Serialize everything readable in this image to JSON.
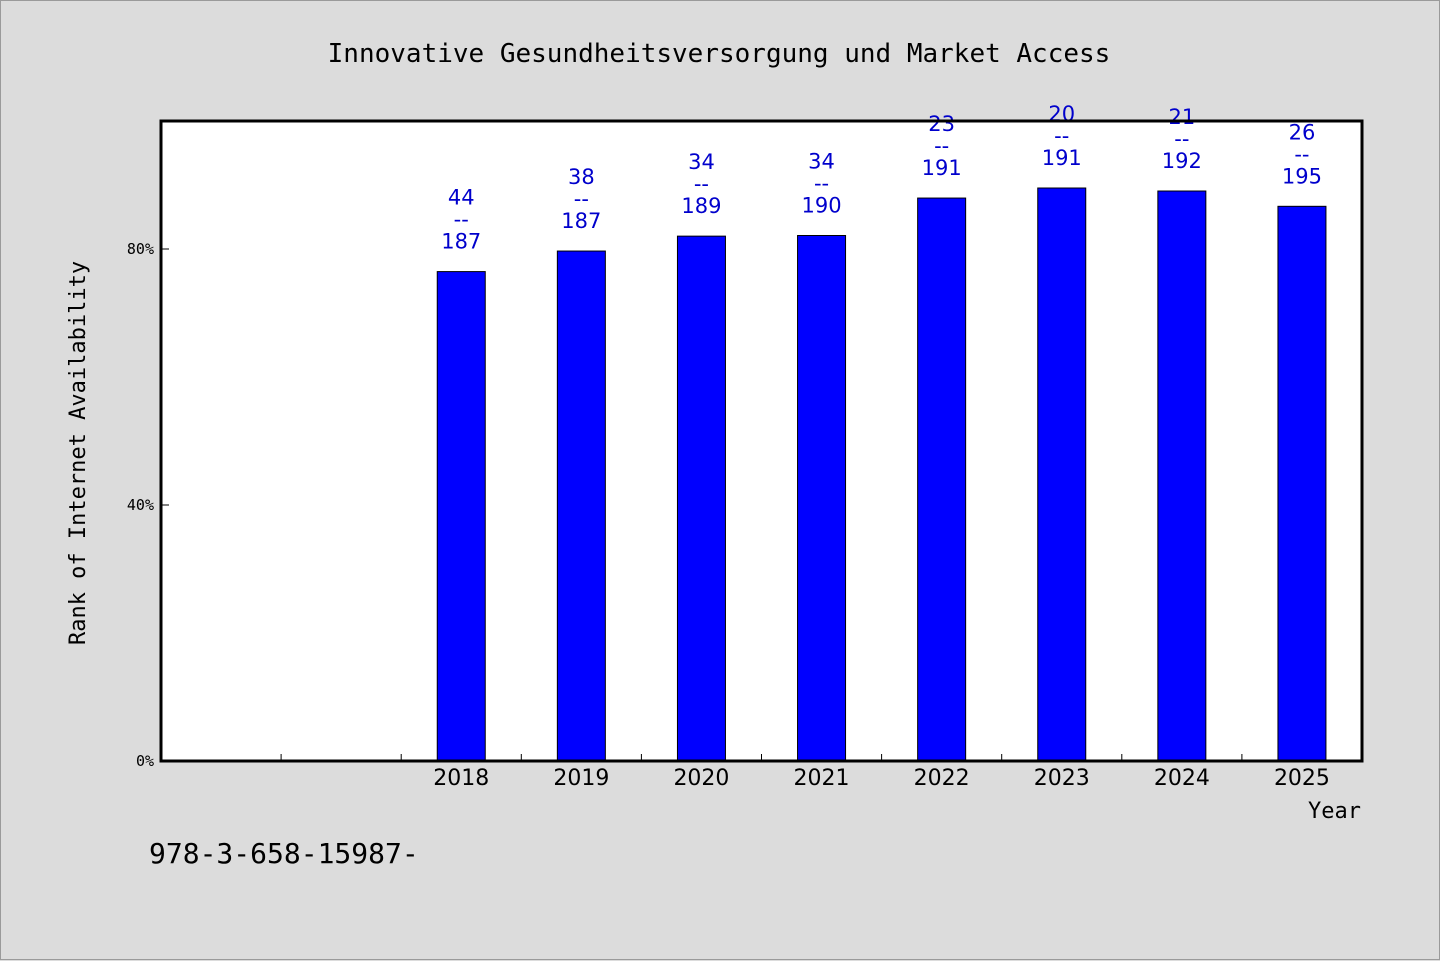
{
  "chart_data": {
    "type": "bar",
    "title": "Innovative Gesundheitsversorgung und Market Access",
    "xlabel": "Year",
    "ylabel": "Rank of Internet Availability",
    "categories": [
      "",
      "",
      "2018",
      "2019",
      "2020",
      "2021",
      "2022",
      "2023",
      "2024",
      "2025"
    ],
    "values": [
      null,
      null,
      76.47,
      79.68,
      82.01,
      82.11,
      87.96,
      89.53,
      89.06,
      86.67
    ],
    "annotations": [
      null,
      null,
      {
        "rank": "44",
        "sep": "--",
        "total": "187"
      },
      {
        "rank": "38",
        "sep": "--",
        "total": "187"
      },
      {
        "rank": "34",
        "sep": "--",
        "total": "189"
      },
      {
        "rank": "34",
        "sep": "--",
        "total": "190"
      },
      {
        "rank": "23",
        "sep": "--",
        "total": "191"
      },
      {
        "rank": "20",
        "sep": "--",
        "total": "191"
      },
      {
        "rank": "21",
        "sep": "--",
        "total": "192"
      },
      {
        "rank": "26",
        "sep": "--",
        "total": "195"
      }
    ],
    "yticks": [
      {
        "value": 0,
        "label": "0%"
      },
      {
        "value": 40,
        "label": "40%"
      },
      {
        "value": 80,
        "label": "80%"
      }
    ],
    "ylim": [
      0,
      100
    ],
    "grid": false,
    "legend": "none",
    "colors": {
      "bar": "#0000ff",
      "label": "#0000cc",
      "plot_bg": "#ffffff",
      "page_bg": "#dcdcdc",
      "axis": "#000000"
    }
  },
  "footer": {
    "isbn": "978-3-658-15987-"
  }
}
